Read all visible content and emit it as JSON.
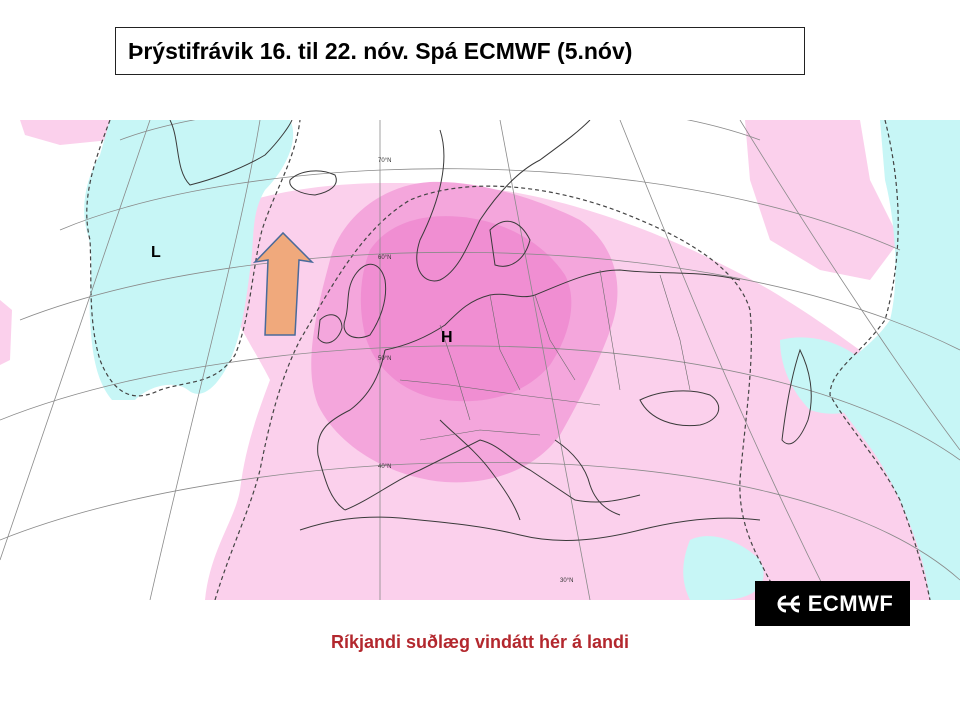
{
  "title": "Þrýstifrávik 16.  til 22. nóv.  Spá ECMWF (5.nóv)",
  "map": {
    "low_label": "L",
    "high_label": "H",
    "lat_labels": [
      "70°N",
      "60°N",
      "50°N",
      "40°N",
      "30°N"
    ],
    "colors": {
      "negative_anomaly": "#c7f6f6",
      "positive_light": "#fbd0ec",
      "positive_medium": "#f4a6dc",
      "positive_strong": "#ee8ad0",
      "arrow_fill": "#f0a97c",
      "arrow_stroke": "#4a6a9a",
      "coast": "#3a3a3a",
      "graticule": "#8a8a8a"
    }
  },
  "logo": {
    "text": "ECMWF",
    "icon": "ecmwf-logo-icon"
  },
  "caption": "Ríkjandi suðlæg vindátt hér á landi"
}
